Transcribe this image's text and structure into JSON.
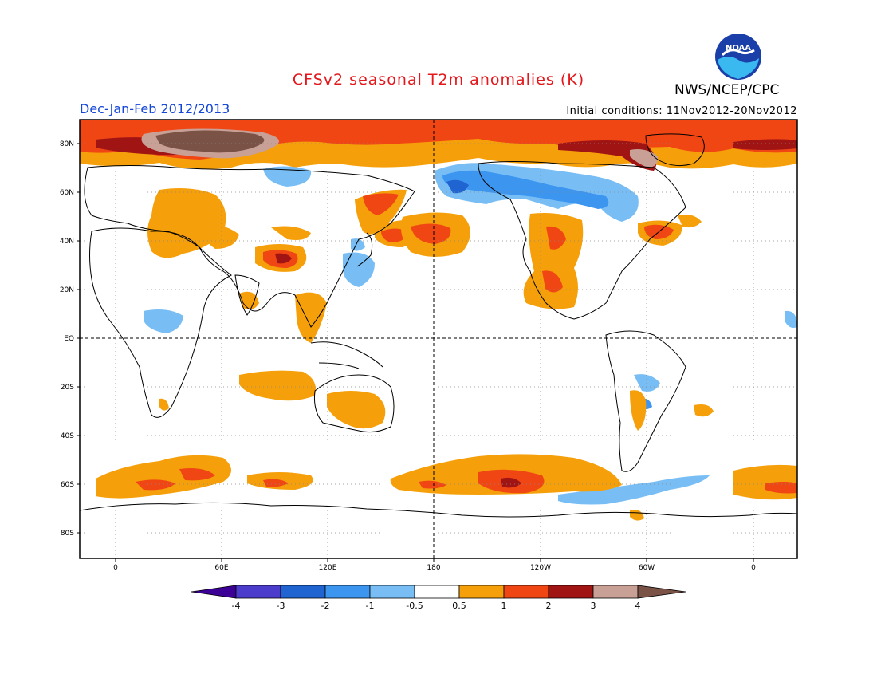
{
  "header": {
    "title": "CFSv2 seasonal T2m anomalies (K)",
    "period": "Dec-Jan-Feb 2012/2013",
    "agency": "NWS/NCEP/CPC",
    "initial_conditions": "Initial conditions: 11Nov2012-20Nov2012",
    "logo_text": "NOAA"
  },
  "map": {
    "lat_labels": [
      "80N",
      "60N",
      "40N",
      "20N",
      "EQ",
      "20S",
      "40S",
      "60S",
      "80S"
    ],
    "lon_labels": [
      "0",
      "60E",
      "120E",
      "180",
      "120W",
      "60W",
      "0"
    ]
  },
  "colorbar": {
    "levels": [
      "-4",
      "-3",
      "-2",
      "-1",
      "-0.5",
      "0.5",
      "1",
      "2",
      "3",
      "4"
    ],
    "colors": {
      "lt_-4": "#3c0096",
      "m4_m3": "#4b3ccc",
      "m3_m2": "#2064d2",
      "m2_m1": "#3c96f0",
      "m1_m05": "#78bef5",
      "m05_05": "#ffffff",
      "05_1": "#f5a00a",
      "1_2": "#f04614",
      "2_3": "#a01414",
      "3_4": "#c8a096",
      "gt_4": "#7a5246"
    }
  }
}
